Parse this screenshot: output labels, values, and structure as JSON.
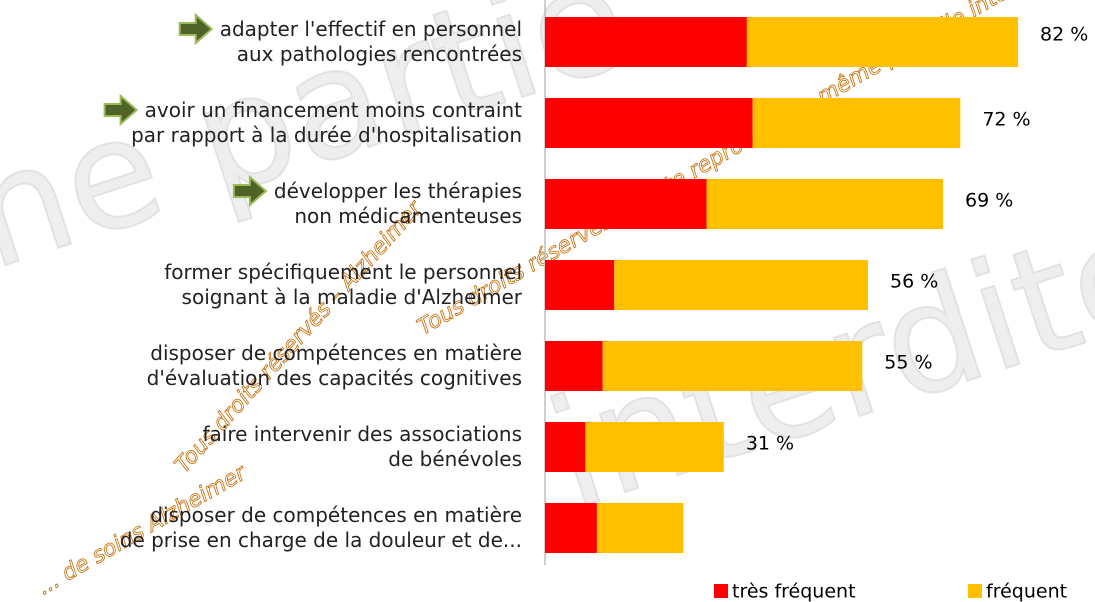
{
  "chart_data": {
    "type": "stacked-bar-horizontal",
    "categories": [
      "adapter l'effectif en personnel\naux pathologies rencontrées",
      "avoir un financement moins contraint\npar rapport à la durée d'hospitalisation",
      "développer les thérapies\nnon médicamenteuses",
      "former spécifiquement le personnel\nsoignant à la maladie d'Alzheimer",
      "disposer de compétences en matière\nd'évaluation des capacités cognitives",
      "faire intervenir des associations\nde bénévoles",
      "disposer de compétences en matière\nde prise en charge de la douleur et de..."
    ],
    "highlighted": [
      true,
      true,
      true,
      false,
      false,
      false,
      false
    ],
    "series": [
      {
        "name": "très fréquent",
        "color": "#ff0000",
        "values": [
          35,
          36,
          28,
          12,
          10,
          7,
          9
        ]
      },
      {
        "name": "fréquent",
        "color": "#ffc000",
        "values": [
          47,
          36,
          41,
          44,
          45,
          24,
          15
        ]
      }
    ],
    "totals": [
      82,
      72,
      69,
      56,
      55,
      31,
      null
    ],
    "value_labels": [
      "82 %",
      "72 %",
      "69 %",
      "56 %",
      "55 %",
      "31 %",
      null
    ],
    "xlim": [
      0,
      95
    ],
    "legend": "bottom-right",
    "watermark": [
      "ne partie",
      "interdite",
      "Tous droits réservés – Toute reproduction même partielle interdite",
      "Tous droits réservés – Alzheimer",
      "... de soins Alzheimer"
    ]
  }
}
